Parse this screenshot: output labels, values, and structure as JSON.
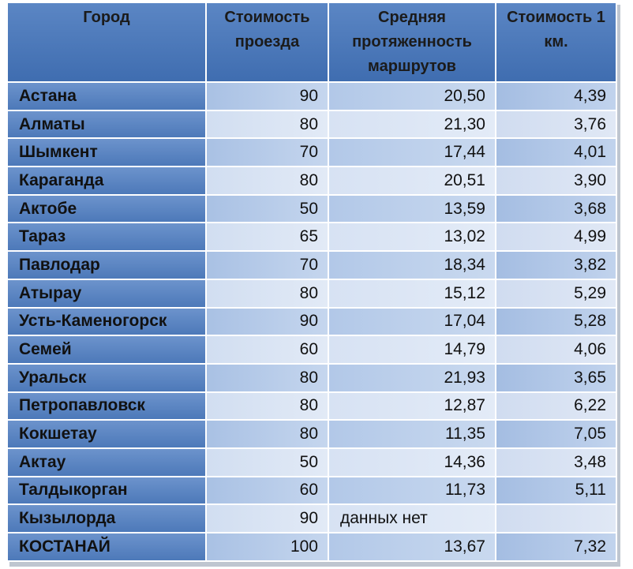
{
  "headers": [
    "Город",
    "Стоимость проезда",
    "Средняя протяженность маршрутов",
    "Стоимость 1 км."
  ],
  "rows": [
    {
      "city": "Астана",
      "fare": "90",
      "length": "20,50",
      "per_km": "4,39"
    },
    {
      "city": "Алматы",
      "fare": "80",
      "length": "21,30",
      "per_km": "3,76"
    },
    {
      "city": "Шымкент",
      "fare": "70",
      "length": "17,44",
      "per_km": "4,01"
    },
    {
      "city": "Караганда",
      "fare": "80",
      "length": "20,51",
      "per_km": "3,90"
    },
    {
      "city": "Актобе",
      "fare": "50",
      "length": "13,59",
      "per_km": "3,68"
    },
    {
      "city": "Тараз",
      "fare": "65",
      "length": "13,02",
      "per_km": "4,99"
    },
    {
      "city": "Павлодар",
      "fare": "70",
      "length": "18,34",
      "per_km": "3,82"
    },
    {
      "city": "Атырау",
      "fare": "80",
      "length": "15,12",
      "per_km": "5,29"
    },
    {
      "city": "Усть-Каменогорск",
      "fare": "90",
      "length": "17,04",
      "per_km": "5,28"
    },
    {
      "city": "Семей",
      "fare": "60",
      "length": "14,79",
      "per_km": "4,06"
    },
    {
      "city": "Уральск",
      "fare": "80",
      "length": "21,93",
      "per_km": "3,65"
    },
    {
      "city": "Петропавловск",
      "fare": "80",
      "length": "12,87",
      "per_km": "6,22"
    },
    {
      "city": "Кокшетау",
      "fare": "80",
      "length": "11,35",
      "per_km": "7,05"
    },
    {
      "city": "Актау",
      "fare": "50",
      "length": "14,36",
      "per_km": "3,48"
    },
    {
      "city": "Талдыкорган",
      "fare": "60",
      "length": "11,73",
      "per_km": "5,11"
    },
    {
      "city": "Кызылорда",
      "fare": "90",
      "note": "данных нет"
    },
    {
      "city": "КОСТАНАЙ",
      "fare": "100",
      "length": "13,67",
      "per_km": "7,32"
    }
  ]
}
